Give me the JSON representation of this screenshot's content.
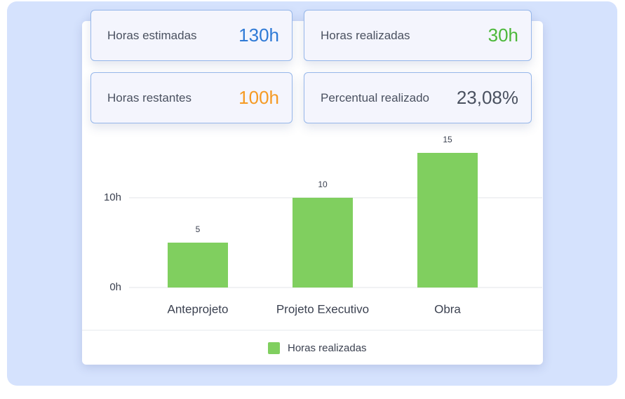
{
  "cards": [
    {
      "label": "Horas estimadas",
      "value": "130h",
      "color": "#2f7ad6"
    },
    {
      "label": "Horas realizadas",
      "value": "30h",
      "color": "#4cb83a"
    },
    {
      "label": "Horas restantes",
      "value": "100h",
      "color": "#f59a23"
    },
    {
      "label": "Percentual realizado",
      "value": "23,08%",
      "color": "#4a5160"
    }
  ],
  "chart_data": {
    "type": "bar",
    "categories": [
      "Anteprojeto",
      "Projeto Executivo",
      "Obra"
    ],
    "series": [
      {
        "name": "Horas realizadas",
        "color": "#80cf5f",
        "values": [
          5,
          10,
          15
        ]
      }
    ],
    "ylim": [
      0,
      16
    ],
    "yticks": [
      {
        "value": 0,
        "label": "0h"
      },
      {
        "value": 10,
        "label": "10h"
      }
    ],
    "grid": true,
    "legend": "bottom"
  }
}
